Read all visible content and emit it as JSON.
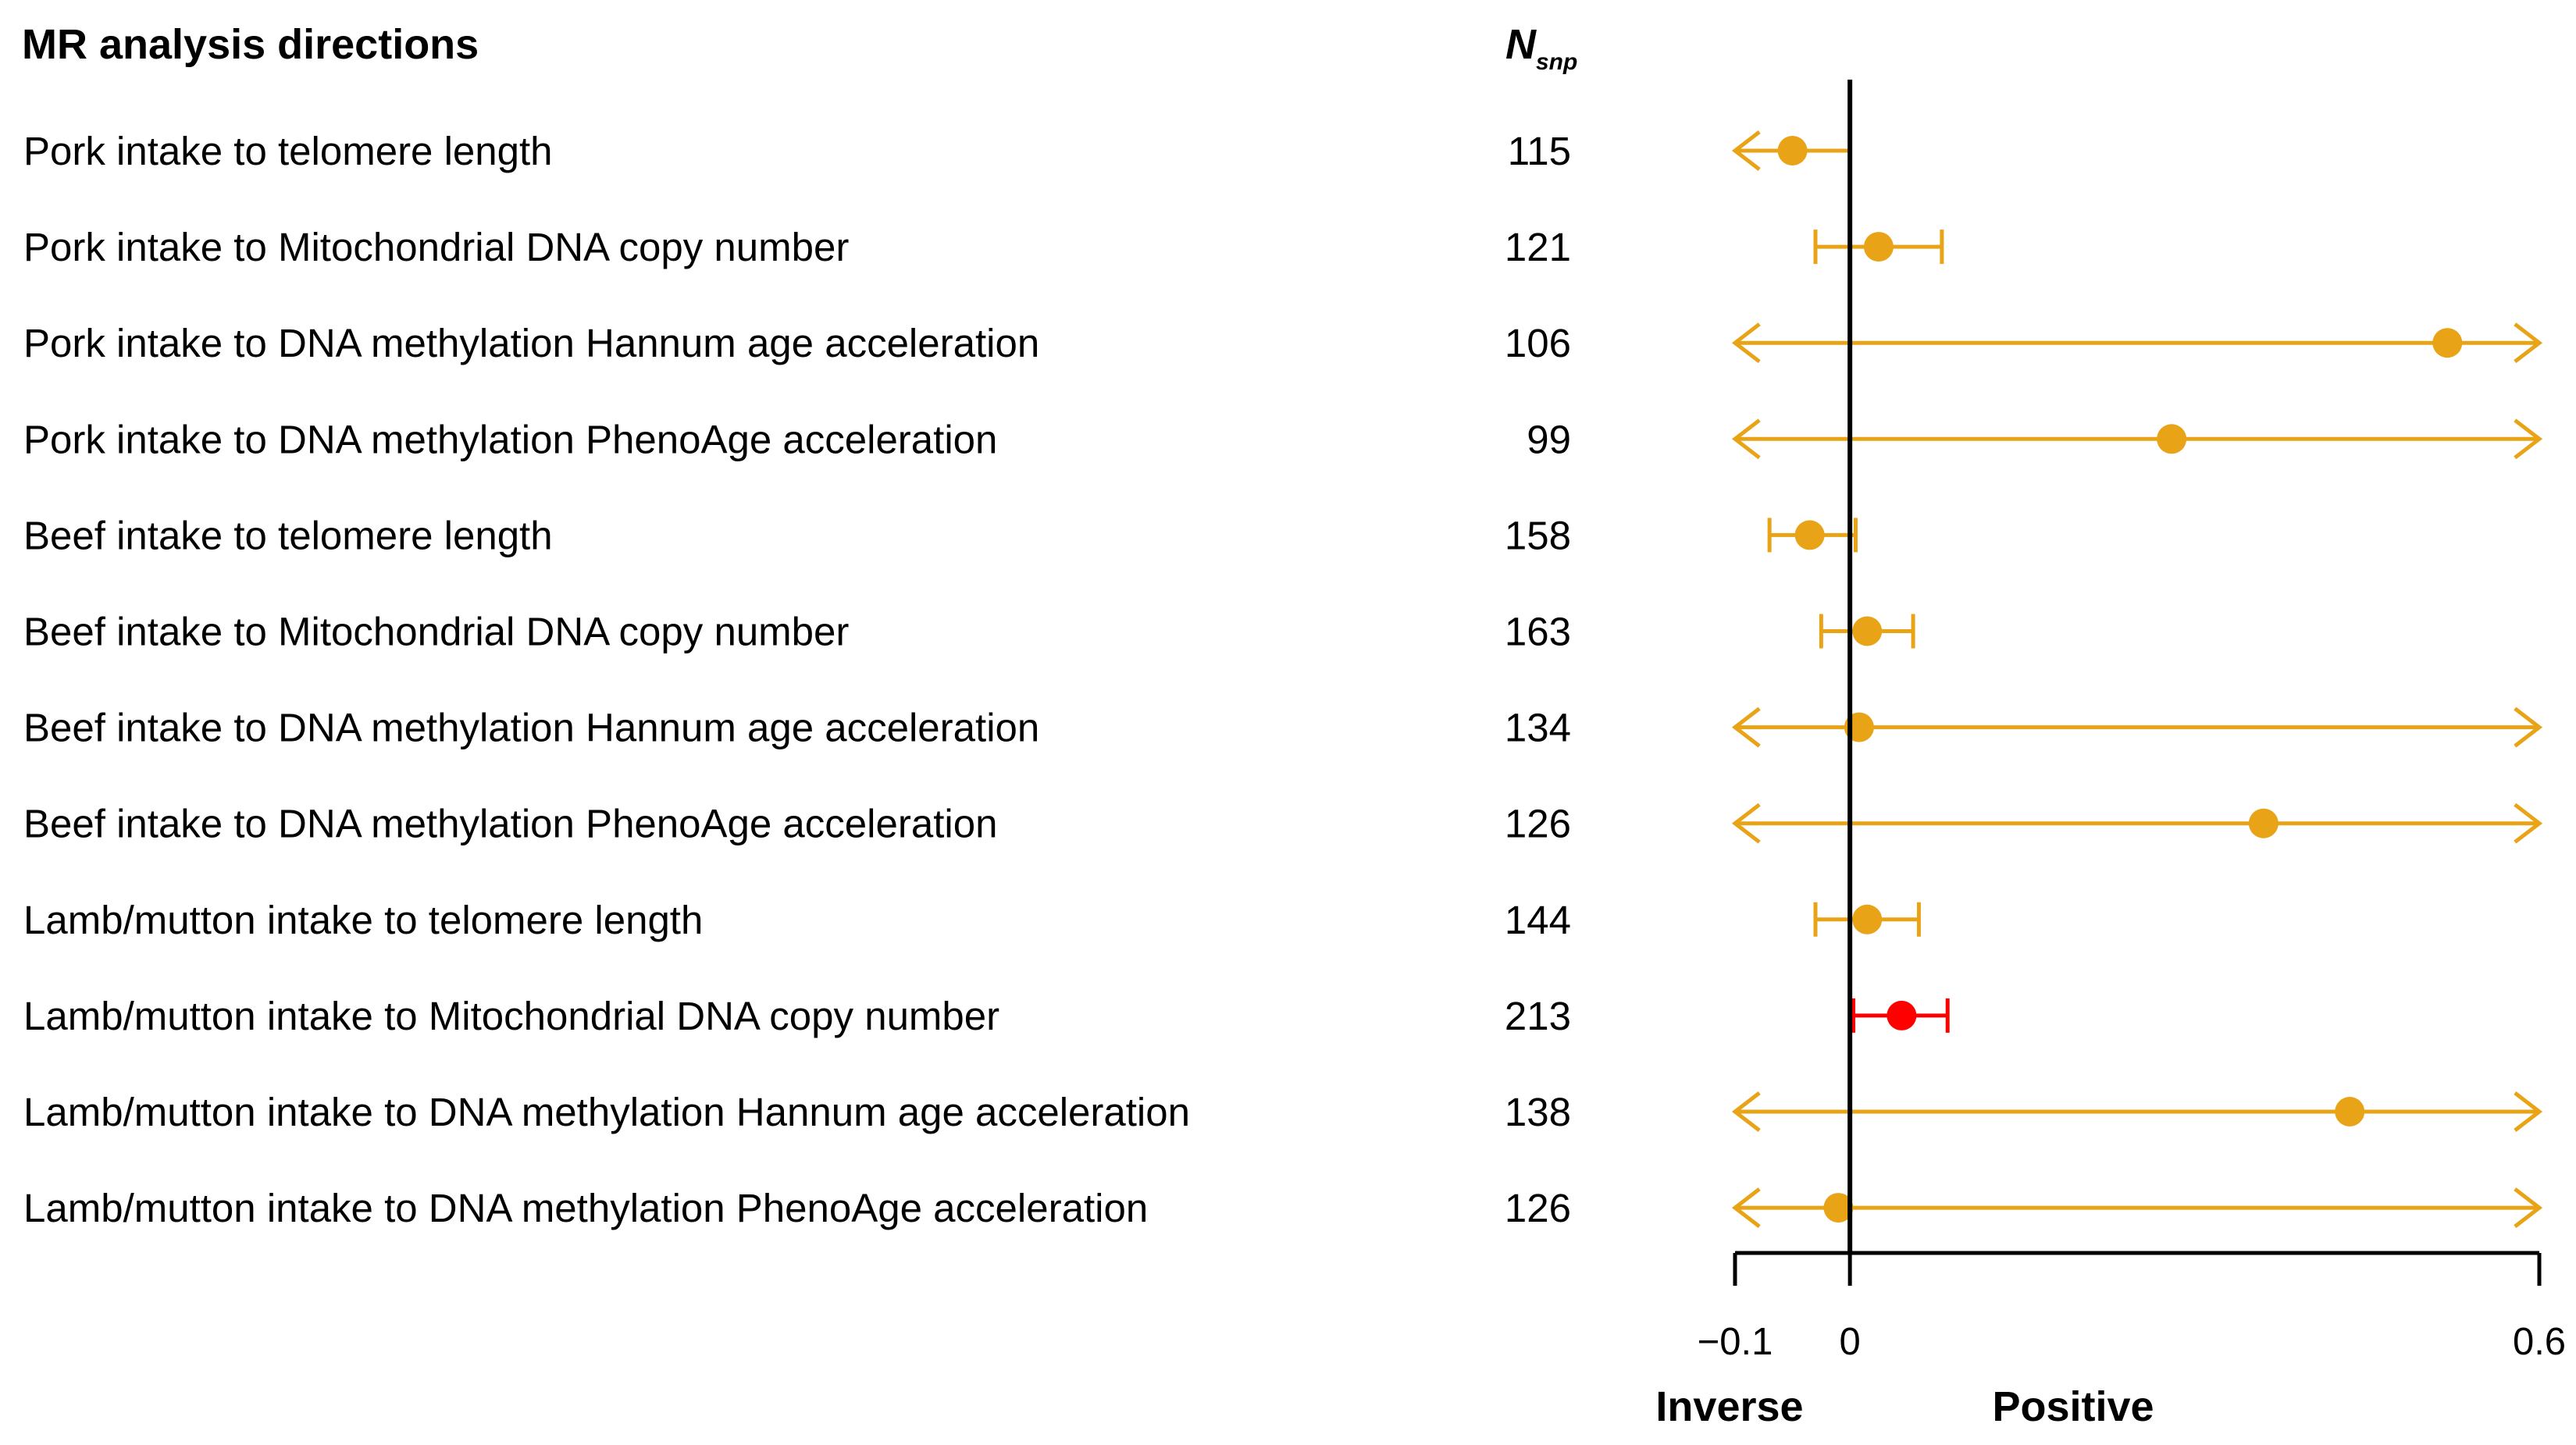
{
  "chart_data": {
    "type": "forest",
    "title": "MR analysis directions",
    "nsnp_header": {
      "main": "N",
      "sub": "snp"
    },
    "xlim": [
      -0.1,
      0.6
    ],
    "xticks": [
      {
        "value": -0.1,
        "label": "−0.1"
      },
      {
        "value": 0,
        "label": "0"
      },
      {
        "value": 0.6,
        "label": "0.6"
      }
    ],
    "xlabel_left": "Inverse",
    "xlabel_right": "Positive",
    "reference_line": 0,
    "colors": {
      "default": "#E8A317",
      "highlight": "#FF0000",
      "text": "#000000",
      "axis": "#000000"
    },
    "rows": [
      {
        "label": "Pork intake to telomere length",
        "nsnp": "115",
        "estimate": -0.05,
        "lower": -0.15,
        "upper": 0.0,
        "highlight": false
      },
      {
        "label": "Pork intake to Mitochondrial DNA copy number",
        "nsnp": "121",
        "estimate": 0.025,
        "lower": -0.03,
        "upper": 0.08,
        "highlight": false
      },
      {
        "label": "Pork intake to DNA methylation Hannum age acceleration",
        "nsnp": "106",
        "estimate": 0.52,
        "lower": -0.15,
        "upper": 0.75,
        "highlight": false
      },
      {
        "label": "Pork intake to DNA methylation PhenoAge acceleration",
        "nsnp": "99",
        "estimate": 0.28,
        "lower": -0.15,
        "upper": 0.75,
        "highlight": false
      },
      {
        "label": "Beef intake to telomere length",
        "nsnp": "158",
        "estimate": -0.035,
        "lower": -0.07,
        "upper": 0.005,
        "highlight": false
      },
      {
        "label": "Beef intake to Mitochondrial DNA copy number",
        "nsnp": "163",
        "estimate": 0.015,
        "lower": -0.025,
        "upper": 0.055,
        "highlight": false
      },
      {
        "label": "Beef intake to DNA methylation Hannum age acceleration",
        "nsnp": "134",
        "estimate": 0.008,
        "lower": -0.15,
        "upper": 0.75,
        "highlight": false
      },
      {
        "label": "Beef intake to DNA methylation PhenoAge acceleration",
        "nsnp": "126",
        "estimate": 0.36,
        "lower": -0.15,
        "upper": 0.75,
        "highlight": false
      },
      {
        "label": "Lamb/mutton intake to telomere length",
        "nsnp": "144",
        "estimate": 0.015,
        "lower": -0.03,
        "upper": 0.06,
        "highlight": false
      },
      {
        "label": "Lamb/mutton intake to Mitochondrial DNA copy number",
        "nsnp": "213",
        "estimate": 0.045,
        "lower": 0.003,
        "upper": 0.085,
        "highlight": true
      },
      {
        "label": "Lamb/mutton intake to DNA methylation Hannum age acceleration",
        "nsnp": "138",
        "estimate": 0.435,
        "lower": -0.15,
        "upper": 0.75,
        "highlight": false
      },
      {
        "label": "Lamb/mutton intake to DNA methylation PhenoAge acceleration",
        "nsnp": "126",
        "estimate": -0.01,
        "lower": -0.15,
        "upper": 0.75,
        "highlight": false
      }
    ]
  }
}
